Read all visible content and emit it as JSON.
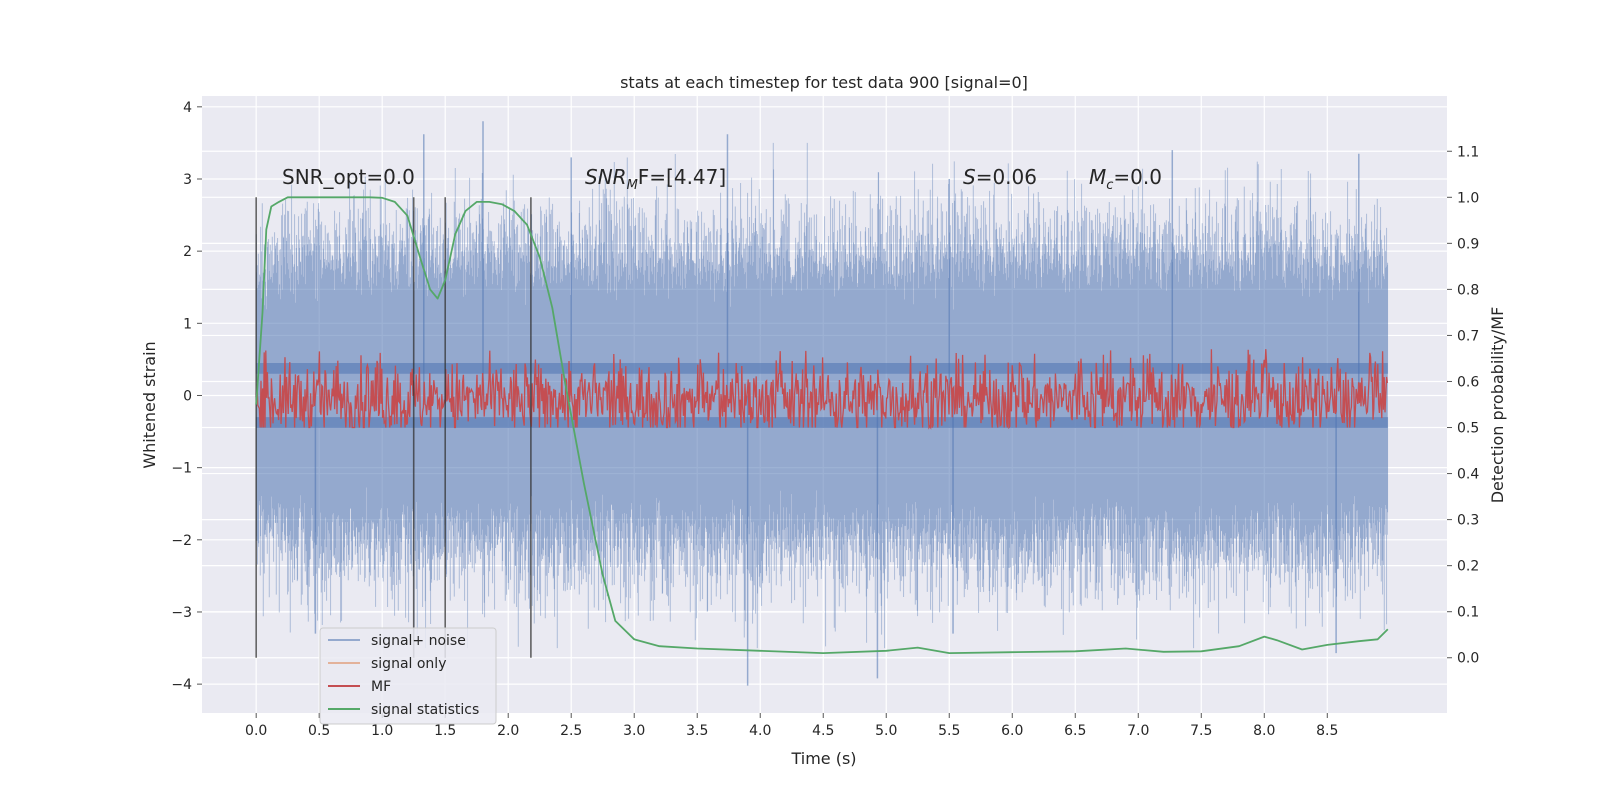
{
  "chart_data": {
    "type": "line",
    "title": "stats at each timestep for test data 900 [signal=0]",
    "xlabel": "Time (s)",
    "ylabel": "Whitened strain",
    "y2label": "Detection probability/MF",
    "xlim": [
      -0.43,
      9.45
    ],
    "ylim": [
      -4.4,
      4.15
    ],
    "y2lim": [
      -0.12,
      1.22
    ],
    "xticks": [
      0.0,
      0.5,
      1.0,
      1.5,
      2.0,
      2.5,
      3.0,
      3.5,
      4.0,
      4.5,
      5.0,
      5.5,
      6.0,
      6.5,
      7.0,
      7.5,
      8.0,
      8.5
    ],
    "xtick_labels": [
      "0.0",
      "0.5",
      "1.0",
      "1.5",
      "2.0",
      "2.5",
      "3.0",
      "3.5",
      "4.0",
      "4.5",
      "5.0",
      "5.5",
      "6.0",
      "6.5",
      "7.0",
      "7.5",
      "8.0",
      "8.5"
    ],
    "yticks": [
      -4,
      -3,
      -2,
      -1,
      0,
      1,
      2,
      3,
      4
    ],
    "ytick_labels": [
      "−4",
      "−3",
      "−2",
      "−1",
      "0",
      "1",
      "2",
      "3",
      "4"
    ],
    "y2ticks": [
      0.0,
      0.1,
      0.2,
      0.3,
      0.4,
      0.5,
      0.6,
      0.7,
      0.8,
      0.9,
      1.0,
      1.1
    ],
    "y2tick_labels": [
      "0.0",
      "0.1",
      "0.2",
      "0.3",
      "0.4",
      "0.5",
      "0.6",
      "0.7",
      "0.8",
      "0.9",
      "1.0",
      "1.1"
    ],
    "grid": true,
    "legend_position": "lower-left",
    "annotations": {
      "snr_opt": "SNR_opt=0.0",
      "snr_mf_base": "SNR",
      "snr_mf_sub": "M",
      "snr_mf_rest": "F=[4.47]",
      "s_var": "S",
      "s_rest": "=0.06",
      "mc_var": "M",
      "mc_sub": "c",
      "mc_rest": "=0.0"
    },
    "vertical_markers": [
      0.0,
      1.25,
      1.5,
      2.18
    ],
    "series": [
      {
        "name": "signal+ noise",
        "color": "#4c72b0",
        "axis": "left",
        "x_range": [
          0.0,
          8.98
        ],
        "envelope_upper": [
          [
            0.0,
            2.2
          ],
          [
            0.5,
            2.6
          ],
          [
            1.0,
            2.5
          ],
          [
            1.5,
            2.5
          ],
          [
            2.0,
            2.6
          ],
          [
            2.5,
            2.5
          ],
          [
            3.0,
            2.6
          ],
          [
            3.5,
            2.5
          ],
          [
            4.0,
            2.6
          ],
          [
            4.5,
            2.5
          ],
          [
            5.0,
            2.6
          ],
          [
            5.5,
            2.5
          ],
          [
            6.0,
            2.6
          ],
          [
            6.5,
            2.5
          ],
          [
            7.0,
            2.6
          ],
          [
            7.5,
            2.5
          ],
          [
            8.0,
            2.6
          ],
          [
            8.5,
            2.4
          ],
          [
            8.98,
            2.5
          ]
        ],
        "envelope_lower": [
          [
            0.0,
            -2.4
          ],
          [
            0.5,
            -2.7
          ],
          [
            1.0,
            -2.6
          ],
          [
            1.5,
            -2.7
          ],
          [
            2.0,
            -2.6
          ],
          [
            2.5,
            -2.7
          ],
          [
            3.0,
            -2.6
          ],
          [
            3.5,
            -2.6
          ],
          [
            4.0,
            -2.7
          ],
          [
            4.5,
            -2.6
          ],
          [
            5.0,
            -2.7
          ],
          [
            5.5,
            -2.6
          ],
          [
            6.0,
            -2.7
          ],
          [
            6.5,
            -2.6
          ],
          [
            7.0,
            -2.6
          ],
          [
            7.5,
            -2.7
          ],
          [
            8.0,
            -2.6
          ],
          [
            8.5,
            -2.7
          ],
          [
            8.98,
            -2.5
          ]
        ],
        "spikes": [
          [
            1.33,
            3.62
          ],
          [
            1.8,
            3.8
          ],
          [
            2.5,
            3.3
          ],
          [
            3.74,
            3.62
          ],
          [
            5.5,
            3.0
          ],
          [
            7.27,
            3.4
          ],
          [
            8.75,
            3.35
          ],
          [
            3.9,
            -4.02
          ],
          [
            4.93,
            -3.92
          ],
          [
            8.57,
            -3.57
          ],
          [
            0.47,
            -3.3
          ],
          [
            5.53,
            -3.3
          ]
        ]
      },
      {
        "name": "signal only",
        "color": "#dd8452",
        "axis": "left",
        "points": []
      },
      {
        "name": "MF",
        "color": "#c44e52",
        "axis": "right",
        "x_range": [
          0.0,
          8.98
        ],
        "band_center": 0.56,
        "band_halfwidth": 0.05,
        "max": 0.67,
        "min": 0.5
      },
      {
        "name": "signal statistics",
        "color": "#55a868",
        "axis": "right",
        "x": [
          0.0,
          0.05,
          0.08,
          0.12,
          0.18,
          0.25,
          0.35,
          0.5,
          0.7,
          0.9,
          1.0,
          1.1,
          1.2,
          1.3,
          1.38,
          1.44,
          1.5,
          1.58,
          1.66,
          1.75,
          1.85,
          1.95,
          2.05,
          2.15,
          2.25,
          2.35,
          2.45,
          2.6,
          2.75,
          2.85,
          3.0,
          3.2,
          3.5,
          4.0,
          4.5,
          5.0,
          5.25,
          5.5,
          6.0,
          6.5,
          6.9,
          7.2,
          7.5,
          7.8,
          8.0,
          8.1,
          8.3,
          8.5,
          8.75,
          8.9,
          8.98
        ],
        "y": [
          0.55,
          0.75,
          0.93,
          0.98,
          0.99,
          1.0,
          1.0,
          1.0,
          1.0,
          1.0,
          0.999,
          0.99,
          0.96,
          0.87,
          0.8,
          0.78,
          0.82,
          0.92,
          0.97,
          0.99,
          0.99,
          0.985,
          0.97,
          0.94,
          0.87,
          0.76,
          0.6,
          0.38,
          0.18,
          0.08,
          0.04,
          0.025,
          0.02,
          0.015,
          0.01,
          0.015,
          0.022,
          0.01,
          0.012,
          0.014,
          0.02,
          0.013,
          0.014,
          0.025,
          0.046,
          0.038,
          0.018,
          0.028,
          0.036,
          0.04,
          0.062
        ]
      }
    ]
  }
}
